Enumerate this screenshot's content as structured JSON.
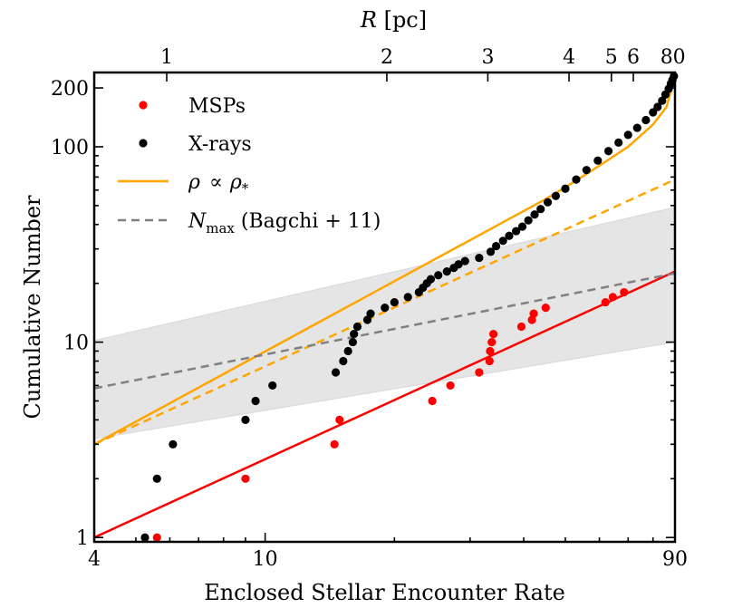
{
  "chart_data": {
    "type": "scatter",
    "x_scale": "log",
    "y_scale": "log",
    "xlim": [
      4,
      90
    ],
    "ylim": [
      0.95,
      240
    ],
    "xlabel": "Enclosed Stellar Encounter Rate",
    "ylabel": "Cumulative Number",
    "top_axis": {
      "label_italic": "R",
      "label_rest": " [pc]",
      "ticks": [
        {
          "label": "1",
          "x": 5.9
        },
        {
          "label": "2",
          "x": 19.2
        },
        {
          "label": "3",
          "x": 33
        },
        {
          "label": "4",
          "x": 51
        },
        {
          "label": "5",
          "x": 64
        },
        {
          "label": "6",
          "x": 72
        },
        {
          "label": "80",
          "x": 89
        }
      ]
    },
    "x_ticks": [
      {
        "label": "4",
        "value": 4
      },
      {
        "label": "10",
        "value": 10
      },
      {
        "label": "90",
        "value": 90
      }
    ],
    "y_ticks": [
      {
        "label": "1",
        "value": 1
      },
      {
        "label": "10",
        "value": 10
      },
      {
        "label": "100",
        "value": 100
      },
      {
        "label": "200",
        "value": 200
      }
    ],
    "legend": {
      "position": "top-left",
      "entries": [
        {
          "key": "msps",
          "label": "MSPs",
          "marker": "dot",
          "color": "#ff0000"
        },
        {
          "key": "xrays",
          "label": "X-rays",
          "marker": "dot",
          "color": "#000000"
        },
        {
          "key": "rho",
          "label_parts": [
            "ρ",
            "∝",
            "ρ",
            "*"
          ],
          "marker": "line",
          "color": "#ffa500"
        },
        {
          "key": "nmax",
          "label_parts": [
            "N",
            "max",
            " (Bagchi + 11)"
          ],
          "marker": "dashed",
          "color": "#808080"
        }
      ]
    },
    "series": [
      {
        "name": "MSPs",
        "kind": "scatter",
        "color": "#ff0000",
        "points": [
          [
            5.6,
            1
          ],
          [
            9.0,
            2
          ],
          [
            14.5,
            3
          ],
          [
            14.9,
            4
          ],
          [
            24.5,
            5
          ],
          [
            27.0,
            6
          ],
          [
            31.5,
            7
          ],
          [
            33.3,
            8
          ],
          [
            33.4,
            9
          ],
          [
            33.7,
            10
          ],
          [
            34.0,
            11
          ],
          [
            39.5,
            12
          ],
          [
            41.8,
            13
          ],
          [
            42.2,
            14
          ],
          [
            45.0,
            15
          ],
          [
            62.0,
            16
          ],
          [
            64.5,
            17
          ],
          [
            68.5,
            18
          ]
        ]
      },
      {
        "name": "X-rays",
        "kind": "scatter",
        "color": "#000000",
        "points": [
          [
            5.25,
            1
          ],
          [
            5.6,
            2
          ],
          [
            6.1,
            3
          ],
          [
            9.0,
            4
          ],
          [
            9.5,
            5
          ],
          [
            10.4,
            6
          ],
          [
            14.6,
            7
          ],
          [
            15.2,
            8
          ],
          [
            15.6,
            9
          ],
          [
            16.0,
            10
          ],
          [
            16.1,
            11
          ],
          [
            16.4,
            12
          ],
          [
            17.3,
            13
          ],
          [
            17.6,
            14
          ],
          [
            19.0,
            15
          ],
          [
            20.0,
            16
          ],
          [
            21.5,
            17
          ],
          [
            22.8,
            18
          ],
          [
            23.3,
            19
          ],
          [
            23.8,
            20
          ],
          [
            24.3,
            21
          ],
          [
            25.3,
            22
          ],
          [
            26.5,
            23
          ],
          [
            27.5,
            24
          ],
          [
            28.2,
            25
          ],
          [
            29.2,
            26
          ],
          [
            31.5,
            27
          ],
          [
            33.5,
            29
          ],
          [
            34.5,
            31
          ],
          [
            35.8,
            33
          ],
          [
            37.0,
            35
          ],
          [
            38.4,
            37
          ],
          [
            39.7,
            39
          ],
          [
            41.0,
            42
          ],
          [
            42.4,
            45
          ],
          [
            43.8,
            48
          ],
          [
            45.5,
            52
          ],
          [
            47.5,
            56
          ],
          [
            50.0,
            61
          ],
          [
            53.0,
            68
          ],
          [
            56.0,
            76
          ],
          [
            59.5,
            85
          ],
          [
            63.0,
            95
          ],
          [
            66.5,
            105
          ],
          [
            70.0,
            115
          ],
          [
            73.5,
            125
          ],
          [
            77.0,
            137
          ],
          [
            80.0,
            150
          ],
          [
            82.0,
            160
          ],
          [
            84.0,
            172
          ],
          [
            85.5,
            185
          ],
          [
            87.0,
            198
          ],
          [
            88.0,
            210
          ],
          [
            88.8,
            220
          ],
          [
            89.5,
            230
          ]
        ]
      },
      {
        "name": "rho-solid",
        "kind": "line",
        "color": "#ffa500",
        "dash": false,
        "points": [
          [
            4,
            3.0
          ],
          [
            45,
            54
          ],
          [
            50,
            62
          ],
          [
            60,
            80
          ],
          [
            70,
            100
          ],
          [
            80,
            130
          ],
          [
            86,
            160
          ],
          [
            89.5,
            220
          ]
        ]
      },
      {
        "name": "rho-dashed",
        "kind": "line",
        "color": "#ffa500",
        "dash": true,
        "points": [
          [
            4,
            3.0
          ],
          [
            90,
            68
          ]
        ]
      },
      {
        "name": "msp-fit",
        "kind": "line",
        "color": "#ff0000",
        "dash": false,
        "points": [
          [
            4,
            1.0
          ],
          [
            90,
            23
          ]
        ]
      },
      {
        "name": "nmax",
        "kind": "line",
        "color": "#808080",
        "dash": true,
        "points": [
          [
            4,
            5.8
          ],
          [
            90,
            22.5
          ]
        ]
      }
    ],
    "band": {
      "name": "nmax-range",
      "color": "#e5e5e5",
      "x": [
        4,
        90
      ],
      "lower": [
        3.2,
        10.0
      ],
      "upper": [
        10.2,
        49
      ]
    }
  }
}
